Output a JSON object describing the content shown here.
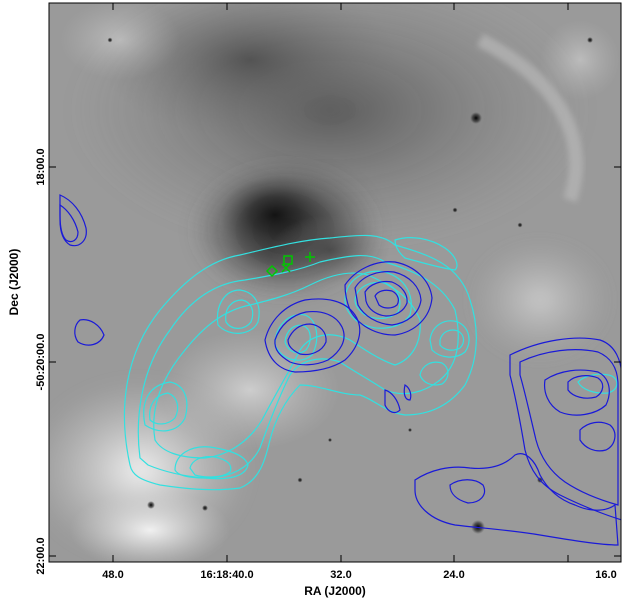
{
  "figure": {
    "xlabel": "RA (J2000)",
    "ylabel": "Dec (J2000)",
    "x_ticks": [
      "48.0",
      "16:18:40.0",
      "32.0",
      "24.0",
      "16.0"
    ],
    "y_ticks": [
      "22:00.0",
      "-50:20:00.0",
      "18:00.0"
    ]
  },
  "colors": {
    "contour_cyan": "#33e0e0",
    "contour_blue": "#1a1ad8",
    "marker_green": "#00c800"
  },
  "markers": [
    {
      "symbol": "diamond"
    },
    {
      "symbol": "x-cross"
    },
    {
      "symbol": "square"
    },
    {
      "symbol": "plus"
    }
  ]
}
